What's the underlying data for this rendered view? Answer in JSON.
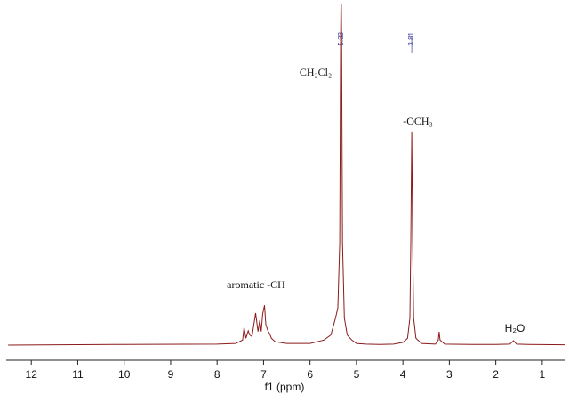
{
  "chart_data": {
    "type": "line",
    "x_label": "f1 (ppm)",
    "xlim": [
      12.54,
      0.5
    ],
    "ylim": [
      0,
      100
    ],
    "xticks": [
      12,
      11,
      10,
      9,
      8,
      7,
      6,
      5,
      4,
      3,
      2,
      1
    ],
    "peak_labels": [
      5.33,
      3.81
    ],
    "annotations": [
      "aromatic -CH",
      "CH₂Cl₂",
      "-OCH₃",
      "H₂O"
    ],
    "series": [
      {
        "color": "#8b1a1a",
        "x": [
          12.5,
          10,
          8,
          7.6,
          7.45,
          7.42,
          7.38,
          7.33,
          7.3,
          7.25,
          7.21,
          7.17,
          7.12,
          7.08,
          7.05,
          7.02,
          6.98,
          6.95,
          6.9,
          6.87,
          6.83,
          6.75,
          6.5,
          6,
          5.7,
          5.55,
          5.45,
          5.4,
          5.36,
          5.34,
          5.33,
          5.32,
          5.3,
          5.26,
          5.2,
          5.1,
          5.0,
          4.8,
          4.5,
          4.2,
          4.0,
          3.9,
          3.85,
          3.83,
          3.81,
          3.79,
          3.77,
          3.72,
          3.6,
          3.3,
          3.24,
          3.22,
          3.2,
          3.1,
          2.5,
          2.0,
          1.7,
          1.64,
          1.62,
          1.6,
          1.55,
          1.3,
          0.5
        ],
        "values": [
          0,
          0.2,
          0.3,
          0.5,
          1.5,
          5.2,
          2,
          4.2,
          3,
          2.5,
          6,
          9.4,
          4,
          7.3,
          4,
          9,
          11.7,
          6,
          4,
          3.4,
          2,
          1,
          0.5,
          0.5,
          1.5,
          3,
          8,
          11,
          30,
          90,
          105,
          90,
          30,
          8,
          3,
          1.5,
          0.5,
          0.3,
          0.2,
          0.3,
          0.8,
          2,
          8,
          30,
          62.7,
          30,
          8,
          2,
          0.5,
          0.3,
          1.5,
          3.9,
          1.5,
          0.3,
          0.2,
          0.2,
          0.3,
          1,
          1.3,
          1,
          0.3,
          0.2,
          0.1
        ]
      }
    ]
  }
}
